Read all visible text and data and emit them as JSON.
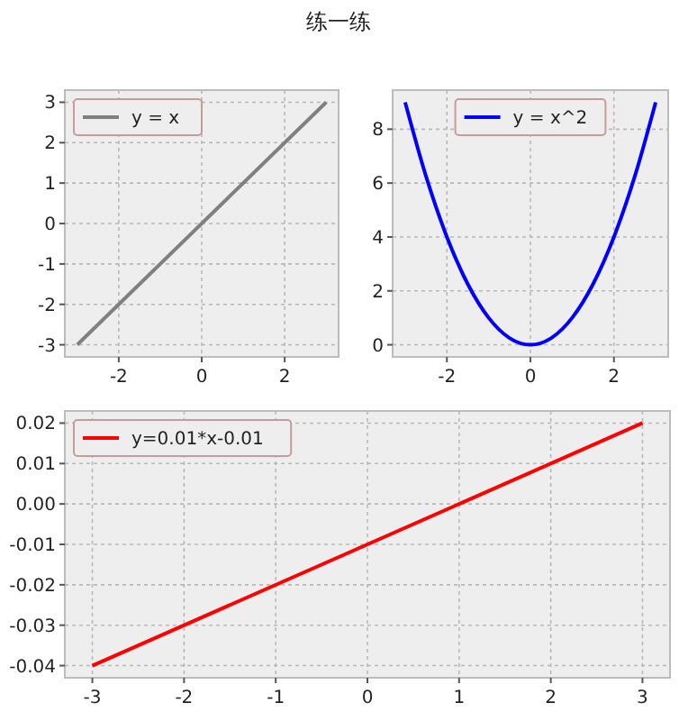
{
  "chart_data": [
    {
      "type": "line",
      "title": "练一练",
      "x": [
        -3,
        3
      ],
      "series": [
        {
          "name": "y = x",
          "color": "#808080",
          "values": [
            -3,
            3
          ]
        }
      ],
      "xlim": [
        -3.3,
        3.3
      ],
      "ylim": [
        -3.3,
        3.3
      ],
      "xticks": [
        -2,
        0,
        2
      ],
      "yticks": [
        -3,
        -2,
        -1,
        0,
        1,
        2,
        3
      ],
      "grid": true,
      "legend": "top left"
    },
    {
      "type": "line",
      "x": [
        -3,
        -2.5,
        -2,
        -1.5,
        -1,
        -0.5,
        0,
        0.5,
        1,
        1.5,
        2,
        2.5,
        3
      ],
      "series": [
        {
          "name": "y = x^2",
          "color": "#0000ff",
          "values": [
            9,
            6.25,
            4,
            2.25,
            1,
            0.25,
            0,
            0.25,
            1,
            2.25,
            4,
            6.25,
            9
          ]
        }
      ],
      "xlim": [
        -3.3,
        3.3
      ],
      "ylim": [
        -0.45,
        9.45
      ],
      "xticks": [
        -2,
        0,
        2
      ],
      "yticks": [
        0,
        2,
        4,
        6,
        8
      ],
      "grid": true,
      "legend": "top"
    },
    {
      "type": "line",
      "x": [
        -3,
        3
      ],
      "series": [
        {
          "name": "y=0.01*x-0.01",
          "color": "#ff0000",
          "values": [
            -0.04,
            0.02
          ]
        }
      ],
      "xlim": [
        -3.3,
        3.3
      ],
      "ylim": [
        -0.043,
        0.023
      ],
      "xticks": [
        -3,
        -2,
        -1,
        0,
        1,
        2,
        3
      ],
      "yticks": [
        {
          "value": -0.04,
          "label": "-0.04"
        },
        {
          "value": -0.03,
          "label": "-0.03"
        },
        {
          "value": -0.02,
          "label": "-0.02"
        },
        {
          "value": -0.01,
          "label": "-0.01"
        },
        {
          "value": 0,
          "label": "0.00"
        },
        {
          "value": 0.01,
          "label": "0.01"
        },
        {
          "value": 0.02,
          "label": "0.02"
        }
      ],
      "grid": true,
      "legend": "top left"
    }
  ]
}
